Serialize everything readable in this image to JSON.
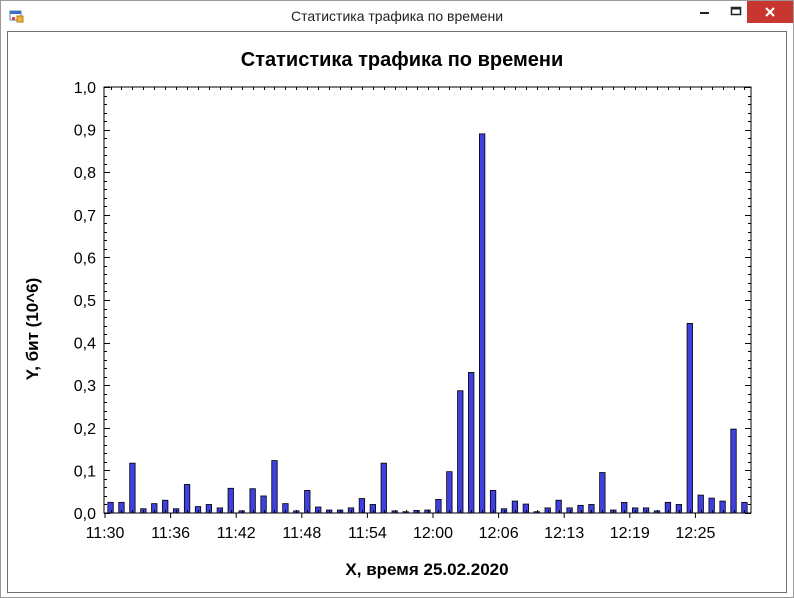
{
  "window": {
    "title": "Статистика трафика по времени",
    "close_color": "#c7372f"
  },
  "chart_data": {
    "type": "bar",
    "title": "Статистика трафика по времени",
    "xlabel": "X, время 25.02.2020",
    "ylabel": "Y, бит (10^6)",
    "ylim": [
      0,
      1.0
    ],
    "yticks": [
      0.0,
      0.1,
      0.2,
      0.3,
      0.4,
      0.5,
      0.6,
      0.7,
      0.8,
      0.9,
      1.0
    ],
    "ytick_labels": [
      "0,0",
      "0,1",
      "0,2",
      "0,3",
      "0,4",
      "0,5",
      "0,6",
      "0,7",
      "0,8",
      "0,9",
      "1,0"
    ],
    "xtick_labels": [
      "11:30",
      "11:36",
      "11:42",
      "11:48",
      "11:54",
      "12:00",
      "12:06",
      "12:13",
      "12:19",
      "12:25"
    ],
    "bar_color": "#4040e0",
    "grid": false,
    "values": [
      0.025,
      0.025,
      0.117,
      0.01,
      0.022,
      0.03,
      0.01,
      0.067,
      0.015,
      0.02,
      0.012,
      0.058,
      0.005,
      0.057,
      0.04,
      0.123,
      0.022,
      0.005,
      0.053,
      0.014,
      0.007,
      0.007,
      0.012,
      0.034,
      0.02,
      0.117,
      0.005,
      0.003,
      0.006,
      0.007,
      0.032,
      0.097,
      0.287,
      0.33,
      0.89,
      0.053,
      0.01,
      0.028,
      0.021,
      0.003,
      0.012,
      0.03,
      0.012,
      0.018,
      0.02,
      0.095,
      0.007,
      0.025,
      0.012,
      0.012,
      0.005,
      0.025,
      0.02,
      0.445,
      0.042,
      0.035,
      0.028,
      0.197,
      0.025
    ]
  }
}
